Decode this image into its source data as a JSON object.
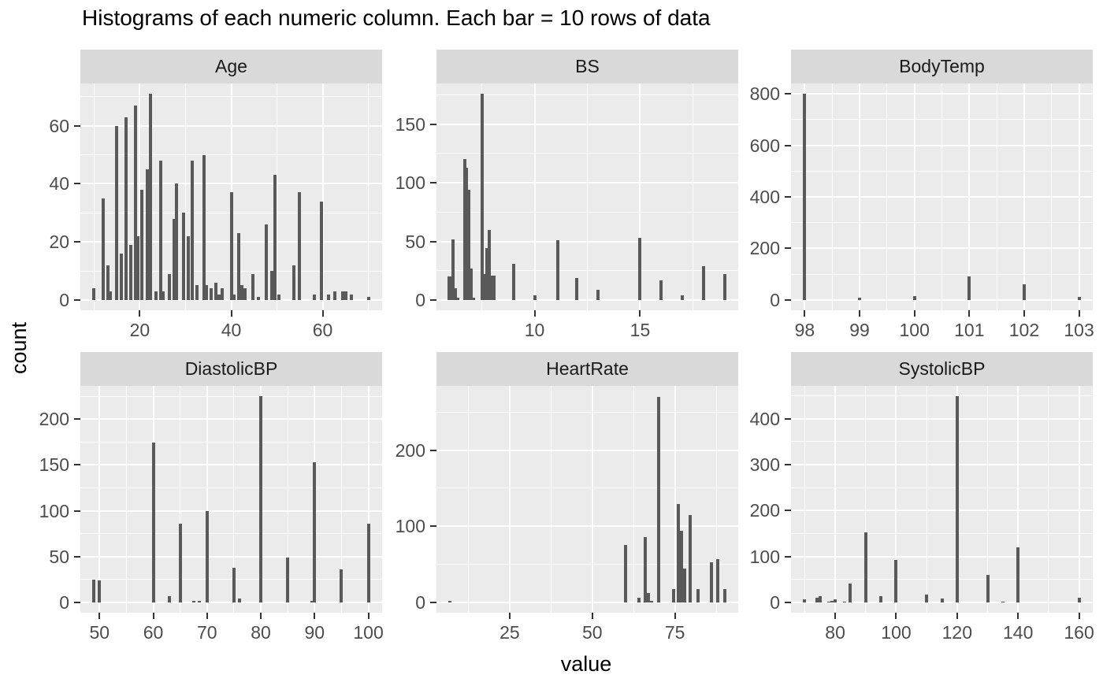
{
  "colors": {
    "panel_bg": "#EBEBEB",
    "strip_bg": "#D9D9D9",
    "bar": "#595959",
    "grid": "#FFFFFF",
    "axis_text": "#4D4D4D",
    "strip_text": "#1A1A1A",
    "tick_mark": "#333333",
    "title_text": "#000000"
  },
  "chart_data": {
    "type": "bar",
    "title": "Histograms of each numeric column. Each bar = 10 rows of data",
    "xlabel": "value",
    "ylabel": "count",
    "legend": "none",
    "grid": "on",
    "facets": [
      {
        "name": "Age",
        "x_range": [
          10,
          70
        ],
        "x_ticks": [
          20,
          40,
          60
        ],
        "y_ticks": [
          0,
          20,
          40,
          60
        ],
        "y_max": 71,
        "bars": [
          [
            10,
            4
          ],
          [
            12,
            35
          ],
          [
            13,
            12
          ],
          [
            13.6,
            3
          ],
          [
            15,
            60
          ],
          [
            16,
            16
          ],
          [
            17,
            63
          ],
          [
            18,
            19
          ],
          [
            19,
            67
          ],
          [
            19.6,
            22
          ],
          [
            20.5,
            38
          ],
          [
            21.7,
            45
          ],
          [
            22.4,
            71
          ],
          [
            23.6,
            3
          ],
          [
            24.6,
            48
          ],
          [
            25.1,
            3
          ],
          [
            26.4,
            9
          ],
          [
            27.5,
            28
          ],
          [
            28.1,
            40
          ],
          [
            29.5,
            30
          ],
          [
            30.6,
            22
          ],
          [
            31.4,
            48
          ],
          [
            32.5,
            5
          ],
          [
            34,
            50
          ],
          [
            34.6,
            5
          ],
          [
            35.6,
            4
          ],
          [
            36.6,
            6
          ],
          [
            37.3,
            2
          ],
          [
            38,
            4
          ],
          [
            40,
            37
          ],
          [
            40.6,
            2
          ],
          [
            41.7,
            23
          ],
          [
            42.4,
            5
          ],
          [
            43.1,
            4
          ],
          [
            44.8,
            9
          ],
          [
            45.9,
            1
          ],
          [
            47.6,
            26
          ],
          [
            48.8,
            10
          ],
          [
            49.6,
            43
          ],
          [
            50.4,
            2
          ],
          [
            53.7,
            12
          ],
          [
            54.9,
            37
          ],
          [
            58.2,
            2
          ],
          [
            59.7,
            34
          ],
          [
            61.2,
            2
          ],
          [
            62.6,
            3
          ],
          [
            64.4,
            3
          ],
          [
            65.1,
            3
          ],
          [
            66.3,
            2
          ],
          [
            70,
            1
          ]
        ]
      },
      {
        "name": "BS",
        "x_range": [
          6,
          19
        ],
        "x_ticks": [
          10,
          15
        ],
        "y_ticks": [
          0,
          50,
          100,
          150
        ],
        "y_max": 176,
        "bars": [
          [
            5.98,
            20,
            5
          ],
          [
            6.12,
            52
          ],
          [
            6.25,
            10
          ],
          [
            6.35,
            2
          ],
          [
            6.68,
            120
          ],
          [
            6.78,
            113
          ],
          [
            6.88,
            94
          ],
          [
            6.98,
            27,
            4
          ],
          [
            7.1,
            2
          ],
          [
            7.53,
            176
          ],
          [
            7.62,
            22,
            4
          ],
          [
            7.75,
            44
          ],
          [
            7.85,
            60
          ],
          [
            7.97,
            21,
            5
          ],
          [
            8.08,
            21,
            4
          ],
          [
            9,
            31
          ],
          [
            10,
            4
          ],
          [
            11.1,
            51
          ],
          [
            12,
            19
          ],
          [
            13,
            9
          ],
          [
            15,
            53
          ],
          [
            16,
            17
          ],
          [
            17,
            4
          ],
          [
            18,
            29
          ],
          [
            19,
            22
          ]
        ]
      },
      {
        "name": "BodyTemp",
        "x_range": [
          98,
          103
        ],
        "x_ticks": [
          98,
          99,
          100,
          101,
          102,
          103
        ],
        "y_ticks": [
          0,
          200,
          400,
          600,
          800
        ],
        "y_max": 800,
        "bars": [
          [
            98,
            800
          ],
          [
            99,
            10
          ],
          [
            100,
            15
          ],
          [
            101,
            92
          ],
          [
            102,
            62
          ],
          [
            103,
            12
          ]
        ]
      },
      {
        "name": "DiastolicBP",
        "x_range": [
          49,
          100
        ],
        "x_ticks": [
          50,
          60,
          70,
          80,
          90,
          100
        ],
        "y_ticks": [
          0,
          50,
          100,
          150,
          200
        ],
        "y_max": 225,
        "bars": [
          [
            49,
            25
          ],
          [
            50,
            24
          ],
          [
            60,
            174
          ],
          [
            63,
            7
          ],
          [
            65,
            86
          ],
          [
            67.5,
            2
          ],
          [
            68.5,
            2
          ],
          [
            70,
            100
          ],
          [
            75,
            38
          ],
          [
            76,
            4
          ],
          [
            80,
            225
          ],
          [
            85,
            49
          ],
          [
            89.5,
            2
          ],
          [
            90,
            153
          ],
          [
            95,
            36
          ],
          [
            100,
            86
          ]
        ]
      },
      {
        "name": "HeartRate",
        "x_range": [
          7,
          90
        ],
        "x_ticks": [
          25,
          50,
          75
        ],
        "y_ticks": [
          0,
          100,
          200
        ],
        "y_max": 271,
        "bars": [
          [
            7,
            2
          ],
          [
            60,
            75
          ],
          [
            64,
            6
          ],
          [
            66,
            86
          ],
          [
            67,
            12
          ],
          [
            68,
            2
          ],
          [
            70,
            270
          ],
          [
            74.5,
            17
          ],
          [
            76,
            129
          ],
          [
            77,
            94
          ],
          [
            78,
            44
          ],
          [
            79.5,
            115
          ],
          [
            82,
            17
          ],
          [
            86,
            53
          ],
          [
            88,
            57
          ],
          [
            90,
            17
          ]
        ]
      },
      {
        "name": "SystolicBP",
        "x_range": [
          70,
          160
        ],
        "x_ticks": [
          80,
          100,
          120,
          140,
          160
        ],
        "y_ticks": [
          0,
          100,
          200,
          300,
          400
        ],
        "y_max": 449,
        "bars": [
          [
            70,
            6
          ],
          [
            74,
            10
          ],
          [
            75,
            14
          ],
          [
            78,
            2
          ],
          [
            79,
            4
          ],
          [
            80,
            6
          ],
          [
            83,
            2
          ],
          [
            85,
            41
          ],
          [
            90,
            153
          ],
          [
            95,
            13
          ],
          [
            100,
            93
          ],
          [
            110,
            17
          ],
          [
            115,
            8
          ],
          [
            120,
            449
          ],
          [
            130,
            60
          ],
          [
            135,
            2
          ],
          [
            140,
            120
          ],
          [
            160,
            10
          ]
        ]
      }
    ]
  }
}
